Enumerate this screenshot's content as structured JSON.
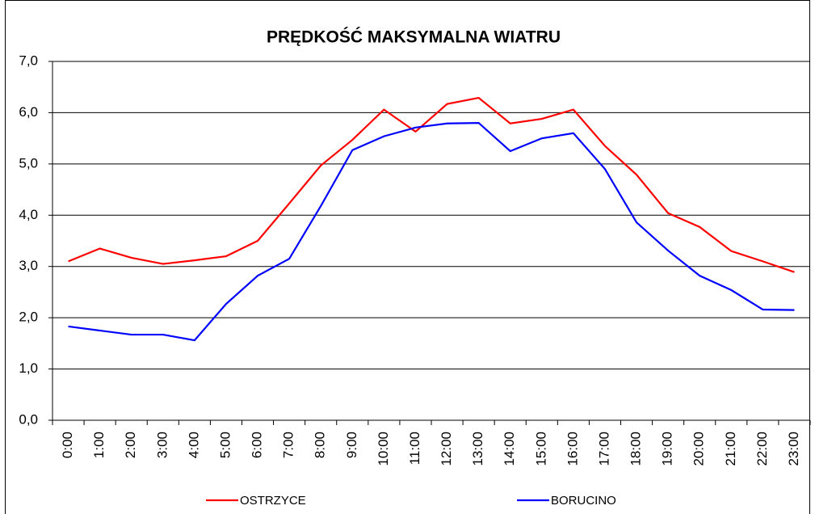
{
  "chart_data": {
    "type": "line",
    "title": "PRĘDKOŚĆ MAKSYMALNA WIATRU",
    "categories": [
      "0:00",
      "1:00",
      "2:00",
      "3:00",
      "4:00",
      "5:00",
      "6:00",
      "7:00",
      "8:00",
      "9:00",
      "10:00",
      "11:00",
      "12:00",
      "13:00",
      "14:00",
      "15:00",
      "16:00",
      "17:00",
      "18:00",
      "19:00",
      "20:00",
      "21:00",
      "22:00",
      "23:00"
    ],
    "series": [
      {
        "name": "OSTRZYCE",
        "color": "#ff0000",
        "values": [
          3.1,
          3.35,
          3.17,
          3.05,
          3.12,
          3.2,
          3.5,
          4.23,
          4.97,
          5.47,
          6.06,
          5.63,
          6.17,
          6.29,
          5.79,
          5.88,
          6.06,
          5.35,
          4.79,
          4.04,
          3.77,
          3.3,
          3.1,
          2.89
        ]
      },
      {
        "name": "BORUCINO",
        "color": "#0000ff",
        "values": [
          1.83,
          1.75,
          1.67,
          1.67,
          1.56,
          2.27,
          2.82,
          3.15,
          4.18,
          5.27,
          5.54,
          5.71,
          5.79,
          5.8,
          5.25,
          5.5,
          5.6,
          4.9,
          3.86,
          3.31,
          2.82,
          2.54,
          2.16,
          2.15
        ]
      }
    ],
    "ylim": [
      0,
      7
    ],
    "yticks": [
      {
        "value": 0,
        "label": "0,0"
      },
      {
        "value": 1,
        "label": "1,0"
      },
      {
        "value": 2,
        "label": "2,0"
      },
      {
        "value": 3,
        "label": "3,0"
      },
      {
        "value": 4,
        "label": "4,0"
      },
      {
        "value": 5,
        "label": "5,0"
      },
      {
        "value": 6,
        "label": "6,0"
      },
      {
        "value": 7,
        "label": "7,0"
      }
    ],
    "grid": true,
    "legend": "bottom"
  }
}
